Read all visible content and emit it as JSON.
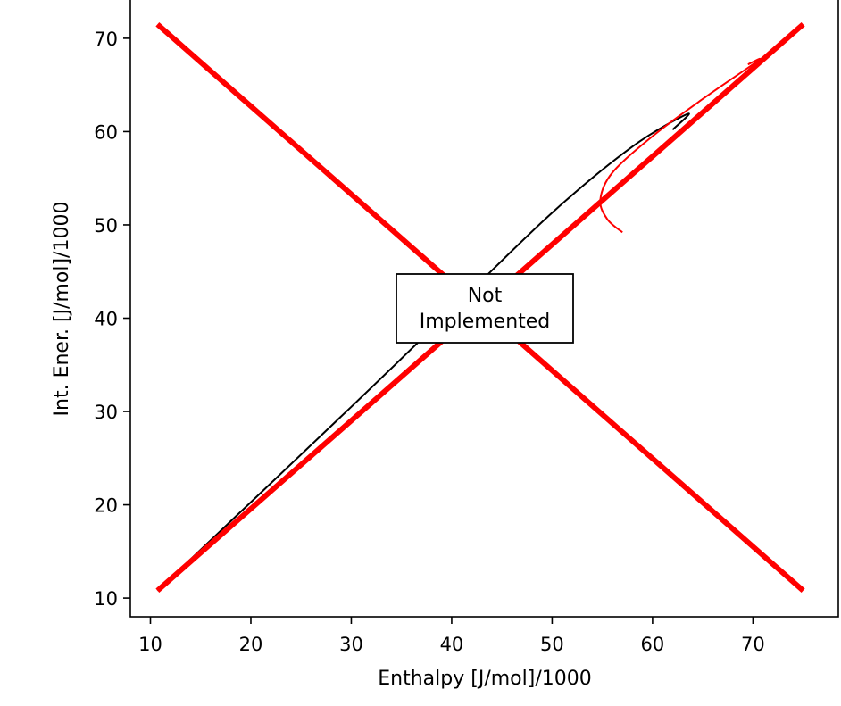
{
  "chart_data": {
    "type": "line",
    "title": "",
    "xlabel": "Enthalpy [J/mol]/1000",
    "ylabel": "Int. Ener. [J/mol]/1000",
    "xlim": [
      8,
      78.5
    ],
    "ylim": [
      8,
      74.2
    ],
    "xticks": [
      10,
      20,
      30,
      40,
      50,
      60,
      70
    ],
    "yticks": [
      10,
      20,
      30,
      40,
      50,
      60,
      70
    ],
    "grid": false,
    "annotation": {
      "line1": "Not",
      "line2": "Implemented",
      "x": 42.8,
      "y": 41.2
    },
    "series": [
      {
        "color": "#000000",
        "kind": "curve",
        "points": [
          [
            10.7,
            10.8
          ],
          [
            30,
            30.5
          ],
          [
            40,
            40.9
          ],
          [
            50,
            51.3
          ],
          [
            58,
            58.4
          ],
          [
            63.5,
            61.9
          ],
          [
            62,
            60.2
          ]
        ]
      },
      {
        "color": "#ff0000",
        "kind": "curve",
        "points": [
          [
            57,
            49.2
          ],
          [
            55.5,
            50.6
          ],
          [
            54.8,
            52.7
          ],
          [
            56,
            55.6
          ],
          [
            60,
            59.5
          ],
          [
            65,
            63.5
          ],
          [
            70.5,
            67.6
          ],
          [
            69.5,
            67.2
          ]
        ]
      },
      {
        "color": "#ff0000",
        "kind": "cross",
        "points": [
          [
            10.7,
            10.8
          ],
          [
            75,
            71.5
          ]
        ]
      },
      {
        "color": "#ff0000",
        "kind": "cross",
        "points": [
          [
            10.7,
            71.5
          ],
          [
            75,
            10.8
          ]
        ]
      }
    ]
  }
}
